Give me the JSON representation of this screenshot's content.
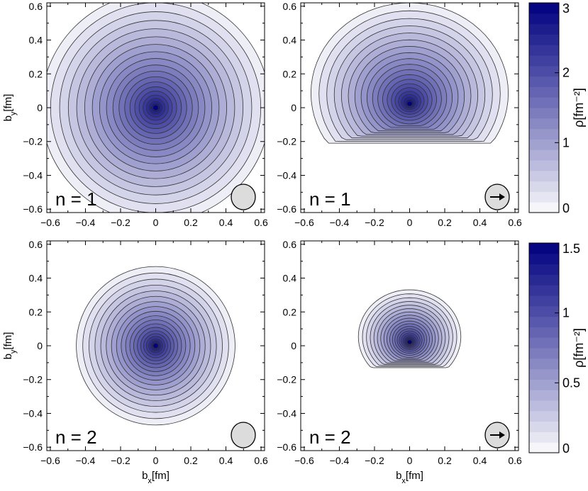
{
  "chart_data": [
    {
      "type": "heatmap",
      "panel": "top-left",
      "xlabel": "",
      "ylabel": "b_y[fm]",
      "xlim": [
        -0.62,
        0.62
      ],
      "ylim": [
        -0.62,
        0.62
      ],
      "xticks": [
        "−0.6",
        "−0.4",
        "−0.2",
        "0",
        "0.2",
        "0.4",
        "0.6"
      ],
      "yticks": [
        "−0.6",
        "−0.4",
        "−0.2",
        "0",
        "0.2",
        "0.4",
        "0.6"
      ],
      "annotation": "n = 1",
      "icon": "plain-circle-icon",
      "center": [
        0.0,
        0.0
      ],
      "outer_radius": 0.64,
      "peak_density": 3.0,
      "spin_arrow": false
    },
    {
      "type": "heatmap",
      "panel": "top-right",
      "xlabel": "",
      "ylabel": "",
      "xlim": [
        -0.62,
        0.62
      ],
      "ylim": [
        -0.62,
        0.62
      ],
      "xticks": [
        "−0.6",
        "−0.4",
        "−0.2",
        "0",
        "0.2",
        "0.4",
        "0.6"
      ],
      "yticks": [
        "−0.6",
        "−0.4",
        "−0.2",
        "0",
        "0.2",
        "0.4",
        "0.6"
      ],
      "annotation": "n = 1",
      "icon": "arrow-circle-icon",
      "center": [
        0.0,
        0.02
      ],
      "outer_radius": 0.55,
      "bottom_cutoff": -0.21,
      "peak_density": 3.0,
      "spin_arrow": true
    },
    {
      "type": "heatmap",
      "panel": "bottom-left",
      "xlabel": "b_x[fm]",
      "ylabel": "b_y[fm]",
      "xlim": [
        -0.62,
        0.62
      ],
      "ylim": [
        -0.62,
        0.62
      ],
      "xticks": [
        "−0.6",
        "−0.4",
        "−0.2",
        "0",
        "0.2",
        "0.4",
        "0.6"
      ],
      "yticks": [
        "−0.6",
        "−0.4",
        "−0.2",
        "0",
        "0.2",
        "0.4",
        "0.6"
      ],
      "annotation": "n = 2",
      "icon": "plain-circle-icon",
      "center": [
        0.0,
        0.0
      ],
      "outer_radius": 0.44,
      "peak_density": 1.5,
      "spin_arrow": false
    },
    {
      "type": "heatmap",
      "panel": "bottom-right",
      "xlabel": "b_x[fm]",
      "ylabel": "",
      "xlim": [
        -0.62,
        0.62
      ],
      "ylim": [
        -0.62,
        0.62
      ],
      "xticks": [
        "−0.6",
        "−0.4",
        "−0.2",
        "0",
        "0.2",
        "0.4",
        "0.6"
      ],
      "yticks": [
        "−0.6",
        "−0.4",
        "−0.2",
        "0",
        "0.2",
        "0.4",
        "0.6"
      ],
      "annotation": "n = 2",
      "icon": "arrow-circle-icon",
      "center": [
        0.0,
        0.02
      ],
      "outer_radius": 0.28,
      "bottom_cutoff": -0.13,
      "peak_density": 1.5,
      "spin_arrow": true
    }
  ],
  "colorbars": [
    {
      "row": "top",
      "label": "ρ[fm⁻²]",
      "range": [
        0,
        3
      ],
      "ticks": [
        0,
        1,
        2,
        3
      ],
      "tick_labels": [
        "0",
        "1",
        "2",
        "3"
      ]
    },
    {
      "row": "bottom",
      "label": "ρ[fm⁻²]",
      "range": [
        0,
        1.5
      ],
      "ticks": [
        0,
        0.5,
        1,
        1.5
      ],
      "tick_labels": [
        "0",
        "0.5",
        "1",
        "1.5"
      ]
    }
  ],
  "colors": {
    "low": "#ffffff",
    "high": "#000080",
    "contour_line": "#333333",
    "icon_fill": "#dcdcdc"
  }
}
